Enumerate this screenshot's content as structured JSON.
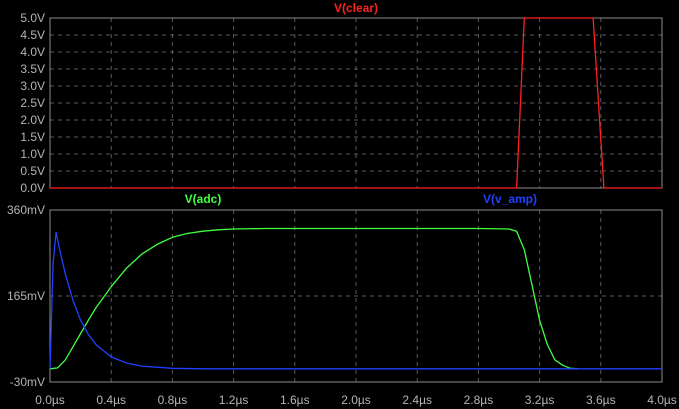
{
  "colors": {
    "background": "#000000",
    "frame": "#8c8c8c",
    "grid": "#5a5a5a",
    "tick_text": "#b4b4b4"
  },
  "chart_data": [
    {
      "type": "line",
      "title": "",
      "x_ticks": [
        "0.0µs",
        "0.4µs",
        "0.8µs",
        "1.2µs",
        "1.6µs",
        "2.0µs",
        "2.4µs",
        "2.8µs",
        "3.2µs",
        "3.6µs",
        "4.0µs"
      ],
      "y_ticks": [
        "0.0V",
        "0.5V",
        "1.0V",
        "1.5V",
        "2.0V",
        "2.5V",
        "3.0V",
        "3.5V",
        "4.0V",
        "4.5V",
        "5.0V"
      ],
      "xlim": [
        0,
        4.0
      ],
      "ylim": [
        0,
        5.0
      ],
      "grid": true,
      "series": [
        {
          "name": "V(clear)",
          "color": "#ff2020",
          "x": [
            0,
            3.05,
            3.1,
            3.55,
            3.62,
            4.0
          ],
          "values": [
            0,
            0,
            5.0,
            5.0,
            0,
            0
          ]
        }
      ]
    },
    {
      "type": "line",
      "title": "",
      "x_ticks": [
        "0.0µs",
        "0.4µs",
        "0.8µs",
        "1.2µs",
        "1.6µs",
        "2.0µs",
        "2.4µs",
        "2.8µs",
        "3.2µs",
        "3.6µs",
        "4.0µs"
      ],
      "y_ticks": [
        "360mV",
        "165mV",
        "-30mV"
      ],
      "xlim": [
        0,
        4.0
      ],
      "ylim": [
        -30,
        360
      ],
      "grid": true,
      "series": [
        {
          "name": "V(adc)",
          "color": "#40ff40",
          "x": [
            0,
            0.05,
            0.1,
            0.15,
            0.2,
            0.25,
            0.3,
            0.4,
            0.5,
            0.6,
            0.7,
            0.8,
            0.9,
            1.0,
            1.1,
            1.2,
            1.4,
            1.6,
            2.0,
            2.4,
            2.8,
            3.0,
            3.05,
            3.1,
            3.15,
            3.2,
            3.25,
            3.3,
            3.35,
            3.4,
            3.45
          ],
          "values": [
            0,
            2,
            20,
            50,
            80,
            110,
            138,
            186,
            228,
            260,
            282,
            298,
            307,
            312,
            315,
            317,
            318,
            318,
            318,
            318,
            318,
            317,
            312,
            270,
            190,
            110,
            55,
            20,
            8,
            1,
            0
          ]
        },
        {
          "name": "V(v_amp)",
          "color": "#2040ff",
          "x": [
            0,
            0.02,
            0.04,
            0.06,
            0.08,
            0.1,
            0.15,
            0.2,
            0.25,
            0.3,
            0.4,
            0.5,
            0.6,
            0.8,
            1.0,
            2.0,
            3.0,
            4.0
          ],
          "values": [
            0,
            240,
            310,
            275,
            245,
            215,
            155,
            110,
            78,
            55,
            27,
            13,
            6,
            1,
            0,
            0,
            0,
            0
          ]
        }
      ]
    }
  ]
}
